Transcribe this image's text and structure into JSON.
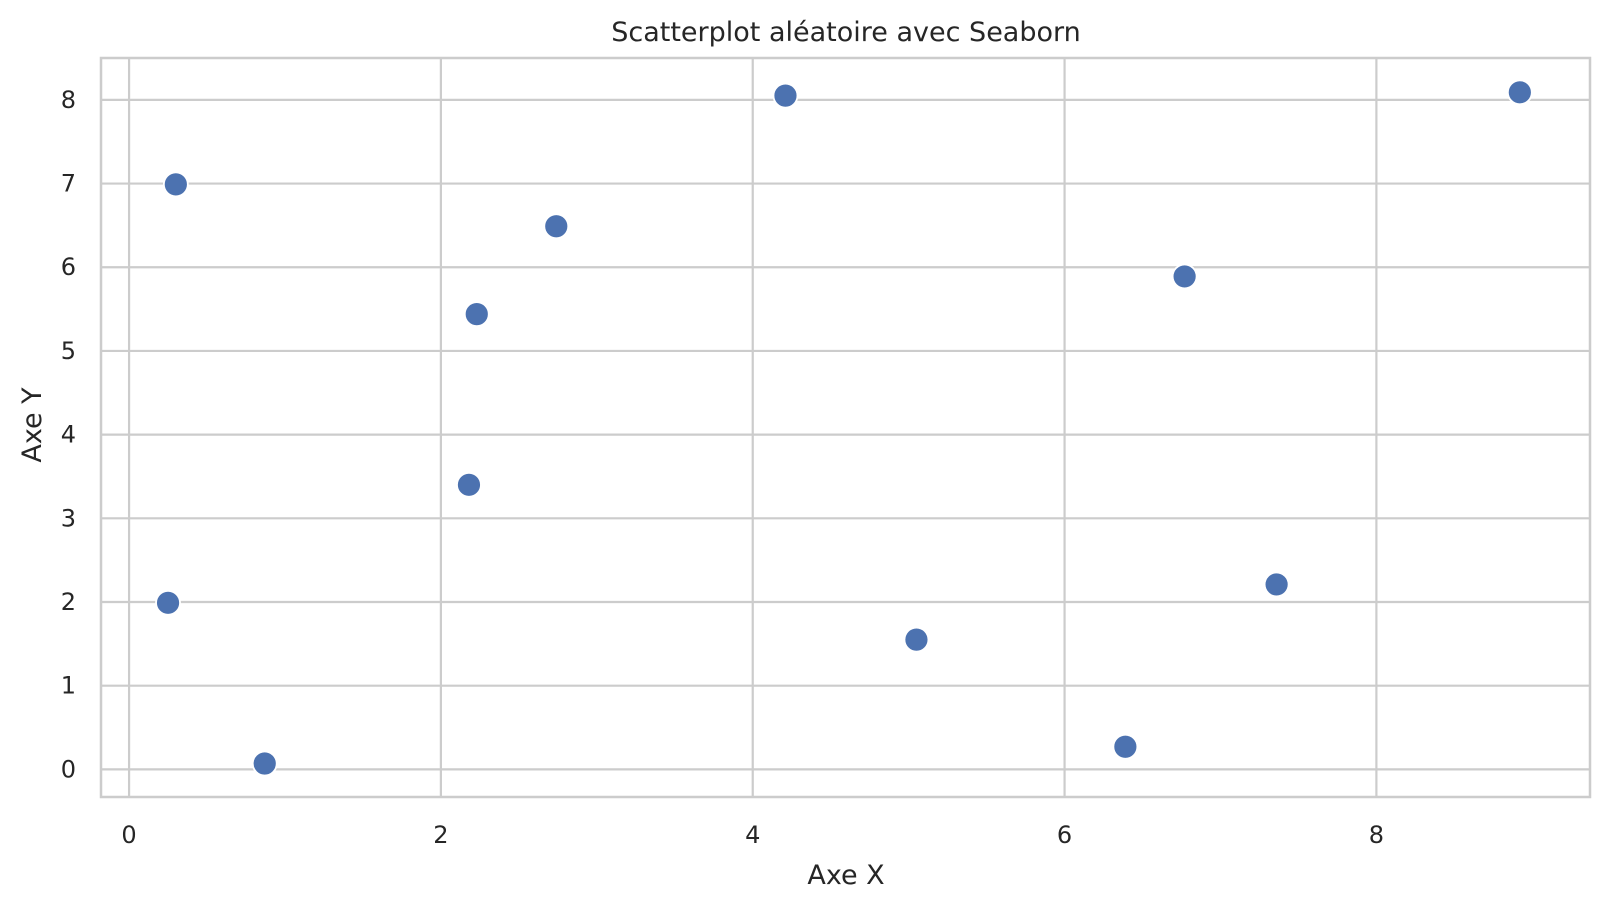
{
  "chart_data": {
    "type": "scatter",
    "title": "Scatterplot aléatoire avec Seaborn",
    "xlabel": "Axe X",
    "ylabel": "Axe Y",
    "xlim": [
      -0.18,
      9.37
    ],
    "ylim": [
      -0.33,
      8.5
    ],
    "xticks": [
      0,
      2,
      4,
      6,
      8
    ],
    "yticks": [
      0,
      1,
      2,
      3,
      4,
      5,
      6,
      7,
      8
    ],
    "grid": true,
    "series": [
      {
        "color": "#4c72b0",
        "points": [
          {
            "x": 0.3,
            "y": 6.99
          },
          {
            "x": 0.25,
            "y": 1.99
          },
          {
            "x": 0.87,
            "y": 0.07
          },
          {
            "x": 2.18,
            "y": 3.4
          },
          {
            "x": 2.23,
            "y": 5.44
          },
          {
            "x": 2.74,
            "y": 6.49
          },
          {
            "x": 4.21,
            "y": 8.05
          },
          {
            "x": 5.05,
            "y": 1.55
          },
          {
            "x": 6.39,
            "y": 0.27
          },
          {
            "x": 6.77,
            "y": 5.89
          },
          {
            "x": 7.36,
            "y": 2.21
          },
          {
            "x": 8.92,
            "y": 8.09
          }
        ]
      }
    ]
  },
  "colors": {
    "background": "#ffffff",
    "grid": "#cccccc",
    "axes_edge": "#cccccc",
    "text": "#262626",
    "marker": "#4c72b0",
    "marker_edge": "#ffffff"
  }
}
